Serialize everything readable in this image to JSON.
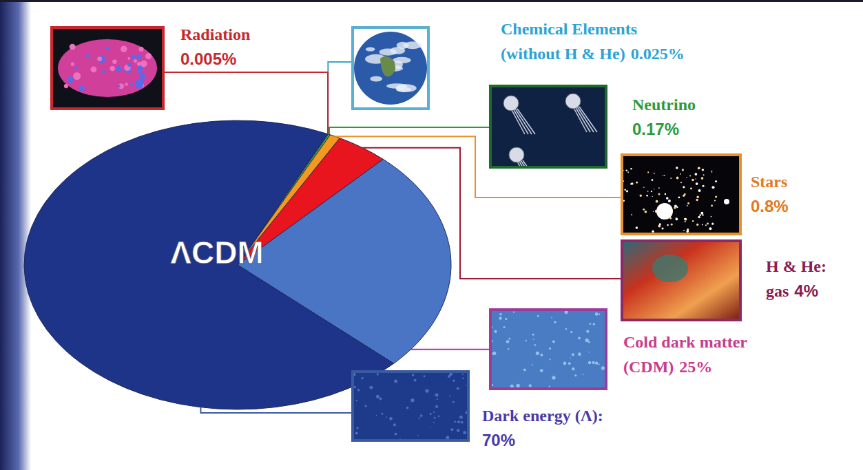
{
  "chart_data": {
    "type": "pie",
    "title": "ΛCDM",
    "categories": [
      "Radiation",
      "Chemical Elements\n(without H & He)",
      "Neutrino",
      "Stars",
      "H & He:\ngas",
      "Cold dark matter\n(CDM)",
      "Dark energy  (Λ):"
    ],
    "values": [
      0.005,
      0.025,
      0.17,
      0.8,
      4,
      25,
      70
    ],
    "value_labels": [
      "0.005%",
      "0.025%",
      "0.17%",
      "0.8%",
      "4%",
      "25%",
      "70%"
    ],
    "colors": [
      "#c0182a",
      "#4fb8e8",
      "#3caa3c",
      "#f39a1e",
      "#e8141e",
      "#4a74c4",
      "#1e3488"
    ],
    "data_labels": true
  }
}
